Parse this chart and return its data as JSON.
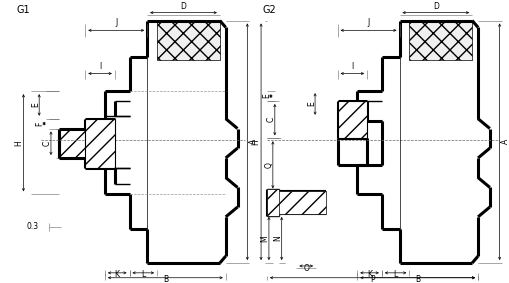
{
  "bg_color": "#ffffff",
  "line_color": "#000000",
  "figsize": [
    5.1,
    2.83
  ],
  "dpi": 100,
  "g1_label": "G1",
  "g2_label": "G2",
  "annotation_03": "0.3"
}
